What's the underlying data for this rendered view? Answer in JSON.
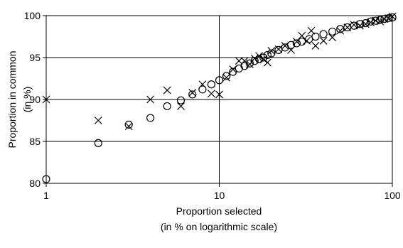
{
  "chart_data": {
    "type": "scatter",
    "xscale": "log",
    "xlim": [
      1,
      100
    ],
    "ylim": [
      80,
      100
    ],
    "xticks": [
      "1",
      "10",
      "100"
    ],
    "yticks": [
      "80",
      "85",
      "90",
      "95",
      "100"
    ],
    "grid": true,
    "legend": "none",
    "xlabel": [
      "Proportion selected",
      "(in % on logarithmic scale)"
    ],
    "ylabel": [
      "Proportion in common",
      "(in %)"
    ],
    "series": [
      {
        "marker": "circle",
        "x": [
          1,
          2,
          3,
          4,
          5,
          6,
          7,
          8,
          9,
          10,
          11,
          12,
          13,
          14,
          15,
          16,
          17,
          18,
          19,
          20,
          22,
          24,
          26,
          28,
          30,
          33,
          36,
          40,
          45,
          50,
          55,
          60,
          65,
          70,
          75,
          80,
          85,
          90,
          95,
          100
        ],
        "y": [
          80.5,
          84.8,
          87.0,
          87.8,
          89.2,
          89.9,
          90.6,
          91.2,
          91.8,
          92.3,
          92.8,
          93.3,
          93.7,
          94.0,
          94.3,
          94.6,
          94.8,
          95.0,
          95.3,
          95.5,
          95.9,
          96.2,
          96.5,
          96.7,
          96.9,
          97.2,
          97.5,
          97.8,
          98.1,
          98.4,
          98.6,
          98.8,
          99.0,
          99.1,
          99.3,
          99.4,
          99.5,
          99.6,
          99.7,
          99.8
        ]
      },
      {
        "marker": "cross",
        "x": [
          1,
          2,
          3,
          4,
          5,
          6,
          7,
          8,
          9,
          10,
          11,
          12,
          13,
          14,
          15,
          16,
          17,
          18,
          19,
          20,
          22,
          24,
          26,
          28,
          30,
          32,
          34,
          36,
          40,
          45,
          50,
          55,
          60,
          65,
          70,
          75,
          80,
          85,
          90,
          95,
          100
        ],
        "y": [
          90.0,
          87.5,
          86.8,
          90.0,
          91.1,
          89.2,
          90.8,
          91.8,
          90.7,
          90.6,
          92.6,
          93.6,
          94.6,
          94.6,
          94.2,
          94.9,
          95.2,
          94.8,
          94.4,
          95.8,
          96.0,
          96.4,
          95.9,
          96.9,
          97.6,
          97.0,
          98.2,
          96.4,
          97.0,
          97.4,
          98.2,
          98.6,
          98.9,
          98.8,
          99.0,
          99.2,
          99.4,
          99.3,
          99.6,
          99.7,
          99.9
        ]
      }
    ]
  }
}
